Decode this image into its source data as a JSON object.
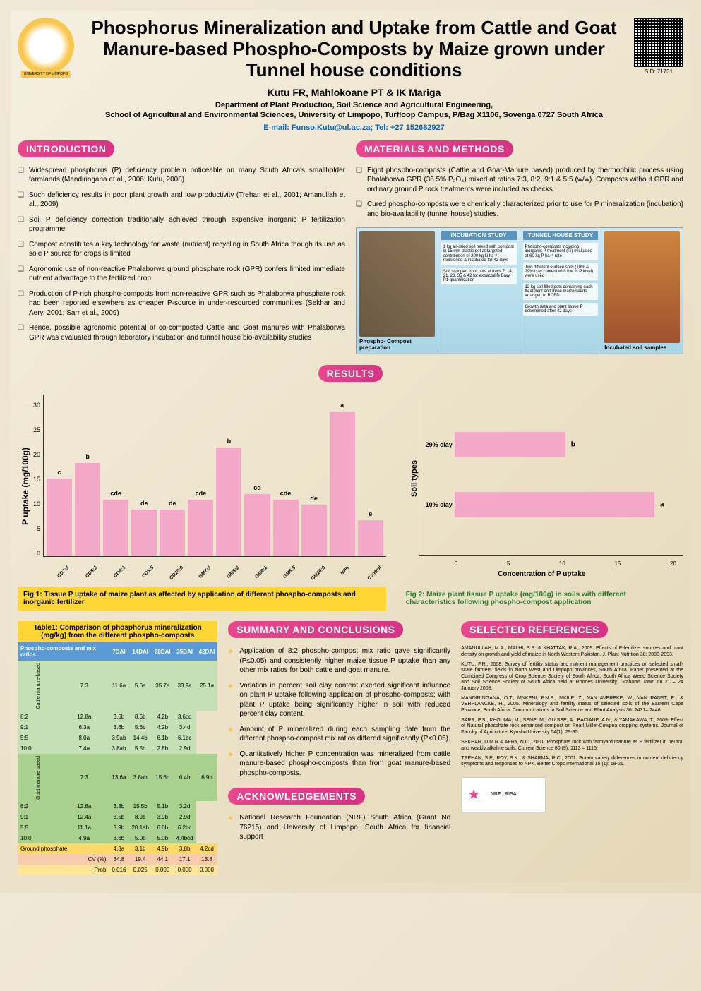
{
  "title": "Phosphorus Mineralization and Uptake from Cattle and Goat Manure-based Phospho-Composts by Maize grown under Tunnel house conditions",
  "authors": "Kutu FR, Mahlokoane PT & IK Mariga",
  "dept": "Department of Plant Production, Soil Science and Agricultural Engineering,",
  "school": "School of Agricultural and Environmental Sciences, University of Limpopo, Turfloop Campus, P/Bag X1106, Sovenga 0727 South Africa",
  "contact": "E-mail: Funso.Kutu@ul.ac.za;  Tel: +27 152682927",
  "sid": "SID: 71731",
  "sections": {
    "intro": "INTRODUCTION",
    "methods": "MATERIALS AND METHODS",
    "results": "RESULTS",
    "summary": "SUMMARY AND CONCLUSIONS",
    "ack": "ACKNOWLEDGEMENTS",
    "refs": "SELECTED REFERENCES"
  },
  "intro_bullets": [
    "Widespread phosphorus (P) deficiency problem noticeable on many South Africa's smallholder farmlands (Mandiringana et al., 2006; Kutu, 2008)",
    "Such deficiency results in poor plant growth and low productivity (Trehan et al., 2001; Amanullah et al., 2009)",
    "Soil P deficiency correction traditionally achieved through expensive inorganic P fertilization programme",
    "Compost constitutes a key technology for waste (nutrient) recycling in South Africa though its use as sole P source for crops is limited",
    "Agronomic use of non-reactive Phalaborwa ground phosphate rock (GPR) confers limited immediate nutrient advantage to the fertilized crop",
    "Production of P-rich phospho-composts from non-reactive GPR such as Phalaborwa phosphate rock had been reported elsewhere as cheaper P-source in under-resourced communities (Sekhar and Aery, 2001; Sarr et al., 2009)",
    "Hence, possible agronomic potential of co-composted Cattle and Goat manures with Phalaborwa GPR was evaluated through laboratory incubation and tunnel house bio-availability studies"
  ],
  "methods_bullets": [
    "Eight phospho-composts (Cattle and Goat-Manure based) produced by thermophilic process using Phalaborwa GPR (36.5% P₂O₅) mixed at ratios 7:3, 8:2, 9:1 & 5:5 (w/w). Composts without GPR and ordinary ground P rock treatments were included as checks.",
    "Cured phospho-composts were chemically characterized prior to use for P mineralization (incubation) and bio-availability (tunnel house) studies."
  ],
  "methods_panels": {
    "p1_caption": "Phospho- Compost preparation",
    "p2_label": "INCUBATION STUDY",
    "p2_t1": "1 kg air-dried soil mixed with compost in 15 mm plastic pot at targeted contribution of 200 kg N ha⁻¹, moistened & incubated for 42 days",
    "p2_t2": "Soil scooped from pots at days 7, 14, 21, 28, 35 & 42 for extractable Bray P1 quantification",
    "p3_label": "TUNNEL HOUSE STUDY",
    "p3_t1": "Phospho-composts including inorganic P treatment (Pi) evaluated at 60 kg P ha⁻¹ rate",
    "p3_t2": "Two different surface soils (10% & 29% clay content with low in P level) were used",
    "p3_t3": "12 kg soil filled pots containing each treatment and three maize seeds arranged in RCBD",
    "p3_t4": "Growth data and plant tissue P determined after 42 days",
    "p4_caption": "Incubated soil samples"
  },
  "chart1": {
    "type": "bar",
    "ylabel": "P uptake (mg/100g)",
    "ymax": 30,
    "ytick_step": 5,
    "categories": [
      "CD7:3",
      "CD8:2",
      "CD9:1",
      "CD5:5",
      "CD10:0",
      "GM7:3",
      "GM8:2",
      "GM9:1",
      "GM5:5",
      "GM10:0",
      "NPK",
      "Control"
    ],
    "values": [
      15,
      18,
      11,
      9,
      9,
      11,
      21,
      12,
      11,
      10,
      28,
      7
    ],
    "letters": [
      "c",
      "b",
      "cde",
      "de",
      "de",
      "cde",
      "b",
      "cd",
      "cde",
      "de",
      "a",
      "e"
    ],
    "bar_color": "#f4a8c8",
    "caption": "Fig 1: Tissue P uptake of maize plant as affected by application of different phospho-composts and inorganic fertilizer"
  },
  "chart2": {
    "type": "hbar",
    "ylabel": "Soil types",
    "xlabel": "Concentration of P uptake",
    "categories": [
      "29% clay",
      "10% clay"
    ],
    "values": [
      10,
      18
    ],
    "letters": [
      "b",
      "a"
    ],
    "xmax": 20,
    "xtick_step": 5,
    "bar_color": "#f4a8c8",
    "caption": "Fig 2: Maize plant tissue P uptake (mg/100g) in soils with different characteristics following phospho-compost application"
  },
  "table": {
    "title": "Table1: Comparison of phosphorus mineralization (mg/kg) from the different phospho-composts",
    "col_header": "Phospho-composts and mix ratios",
    "columns": [
      "7DAI",
      "14DAI",
      "28DAI",
      "35DAI",
      "42DAI"
    ],
    "groups": [
      {
        "label": "Cattle manure-based",
        "class": "tr-cattle",
        "rows": [
          {
            "r": "7:3",
            "v": [
              "11.6a",
              "5.6a",
              "35.7a",
              "33.9a",
              "25.1a"
            ]
          },
          {
            "r": "8:2",
            "v": [
              "12.8a",
              "3.6b",
              "8.6b",
              "4.2b",
              "3.6cd"
            ]
          },
          {
            "r": "9:1",
            "v": [
              "6.3a",
              "3.6b",
              "5.6b",
              "4.2b",
              "3.4d"
            ]
          },
          {
            "r": "5:5",
            "v": [
              "8.0a",
              "3.9ab",
              "14.4b",
              "6.1b",
              "6.1bc"
            ]
          },
          {
            "r": "10:0",
            "v": [
              "7.4a",
              "3.8ab",
              "5.5b",
              "2.8b",
              "2.9d"
            ]
          }
        ]
      },
      {
        "label": "Goat manure based",
        "class": "tr-goat",
        "rows": [
          {
            "r": "7:3",
            "v": [
              "13.6a",
              "3.8ab",
              "15.6b",
              "6.4b",
              "6.9b"
            ]
          },
          {
            "r": "8:2",
            "v": [
              "12.6a",
              "3.3b",
              "15.5b",
              "5.1b",
              "3.2d"
            ]
          },
          {
            "r": "9:1",
            "v": [
              "12.4a",
              "3.5b",
              "8.9b",
              "3.9b",
              "2.9d"
            ]
          },
          {
            "r": "5:5",
            "v": [
              "11.1a",
              "3.9b",
              "20.1ab",
              "6.0b",
              "6.2bc"
            ]
          },
          {
            "r": "10:0",
            "v": [
              "4.9a",
              "3.6b",
              "5.0b",
              "5.0b",
              "4.4bcd"
            ]
          }
        ]
      }
    ],
    "gp_row": {
      "label": "Ground phosphate",
      "v": [
        "4.8a",
        "3.1b",
        "4.9b",
        "3.8b",
        "4.2cd"
      ]
    },
    "cv_row": {
      "label": "CV (%)",
      "v": [
        "34.8",
        "19.4",
        "44.1",
        "17.1",
        "13.8"
      ]
    },
    "prob_row": {
      "label": "Prob",
      "v": [
        "0.016",
        "0.025",
        "0.000",
        "0.000",
        "0.000"
      ]
    }
  },
  "summary_bullets": [
    "Application of 8:2 phospho-compost mix ratio gave significantly (P≤0.05) and consistently higher maize tissue P uptake than any other mix ratios for both cattle and goat manure.",
    "Variation in percent soil clay content exerted significant influence on plant P uptake following application of phospho-composts; with plant P uptake being significantly higher in soil with reduced percent clay content.",
    "Amount of P mineralized during each sampling date from the different phospho-compost mix ratios differed significantly (P<0.05).",
    "Quantitatively higher P concentration was mineralized from cattle manure-based phospho-composts than from goat manure-based phospho-composts."
  ],
  "ack_text": "National Research Foundation (NRF) South Africa (Grant No 76215) and University of Limpopo, South Africa for financial support",
  "refs": [
    "AMANULLAH, M.A., MALHI, S.S. & KHATTAK, R.A., 2009. Effects of P-fertilizer sources and plant density on growth and yield of maize in North Western Pakistan. J. Plant Nutrition  38: 2080-2093.",
    "KUTU, F.R., 2008. Survey of fertility status and nutrient management practices on selected small-scale farmers' fields in North West and Limpopo provinces, South Africa. Paper presented at the Combined Congress of Crop Science Society of South Africa, South Africa Weed Science Society and Soil Science Society of South Africa held at Rhodes University, Grahams Town  on 21 – 24 January 2008.",
    "MANDIRINGANA, O.T., MNKENI, P.N.S., MKILE, Z., VAN AVERBKE, W., VAN RANST, E., & VERPLANCKE, H., 2005. Mineralogy and fertility status of selected soils of the Eastern Cape Province, South Africa. Communications in Soil Science and Plant Analysis 36: 2431– 2446.",
    "SARR, P.S., KHOUMA, M., SENE, M., GUISSE, A., BADIANE, A.N., & YAMAKAWA, T., 2009. Effect of Natural phosphate rock enhanced compost on Pearl Millet-Cowpea cropping  systems. Journal of Faculty of Agriculture, Kyushu University 54(1): 29-35.",
    "SEKHAR, D.M.R & AERY, N.C., 2001. Phosphate rock with farmyard manure as P fertilizer in neutral and weakly alkaline soils. Current Science 80 (9): 1113 – 1115.",
    "TREHAN, S.P., ROY, S.K., & SHARMA, R.C., 2001. Potato variety differences in nutrient deficiency symptoms and responses to NPK. Better Crops International 15 (1): 18-21."
  ],
  "nrf_text": "NRF | RISA"
}
